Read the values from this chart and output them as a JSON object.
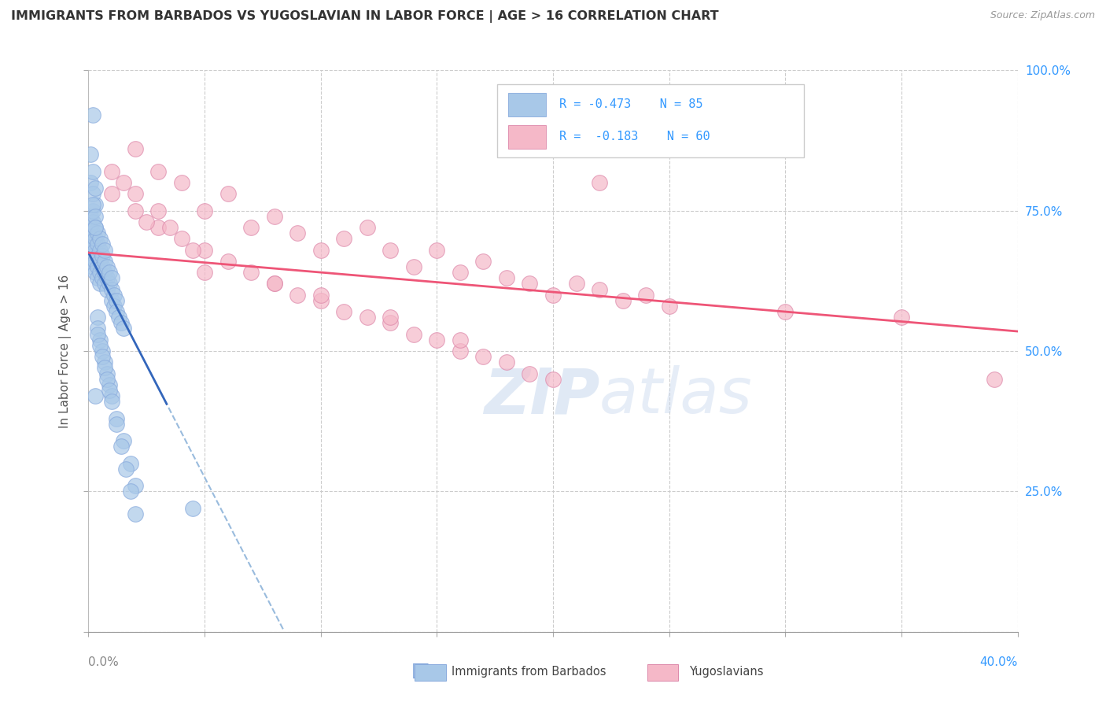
{
  "title": "IMMIGRANTS FROM BARBADOS VS YUGOSLAVIAN IN LABOR FORCE | AGE > 16 CORRELATION CHART",
  "source": "Source: ZipAtlas.com",
  "ylabel_label": "In Labor Force | Age > 16",
  "watermark": "ZIPatlas",
  "blue_color": "#a8c8e8",
  "pink_color": "#f5b8c8",
  "blue_line_color": "#3366bb",
  "pink_line_color": "#ee5577",
  "dashed_line_color": "#99bbdd",
  "right_label_color": "#3399ff",
  "x_min": 0.0,
  "x_max": 0.4,
  "y_min": 0.0,
  "y_max": 1.0,
  "blue_slope": -8.0,
  "blue_intercept": 0.675,
  "pink_slope": -0.35,
  "pink_intercept": 0.675,
  "barbados_x": [
    0.001,
    0.001,
    0.001,
    0.001,
    0.001,
    0.002,
    0.002,
    0.002,
    0.002,
    0.002,
    0.002,
    0.003,
    0.003,
    0.003,
    0.003,
    0.003,
    0.003,
    0.004,
    0.004,
    0.004,
    0.004,
    0.004,
    0.005,
    0.005,
    0.005,
    0.005,
    0.005,
    0.006,
    0.006,
    0.006,
    0.006,
    0.007,
    0.007,
    0.007,
    0.007,
    0.008,
    0.008,
    0.008,
    0.009,
    0.009,
    0.01,
    0.01,
    0.01,
    0.011,
    0.011,
    0.012,
    0.012,
    0.013,
    0.014,
    0.015,
    0.001,
    0.002,
    0.002,
    0.003,
    0.003,
    0.004,
    0.004,
    0.005,
    0.006,
    0.007,
    0.008,
    0.009,
    0.01,
    0.012,
    0.015,
    0.018,
    0.02,
    0.001,
    0.002,
    0.003,
    0.004,
    0.005,
    0.006,
    0.007,
    0.008,
    0.009,
    0.01,
    0.012,
    0.014,
    0.016,
    0.018,
    0.02,
    0.002,
    0.003,
    0.045
  ],
  "barbados_y": [
    0.7,
    0.72,
    0.74,
    0.68,
    0.66,
    0.69,
    0.71,
    0.73,
    0.67,
    0.65,
    0.75,
    0.68,
    0.7,
    0.72,
    0.66,
    0.64,
    0.76,
    0.67,
    0.69,
    0.71,
    0.65,
    0.63,
    0.66,
    0.68,
    0.7,
    0.64,
    0.62,
    0.65,
    0.67,
    0.69,
    0.63,
    0.64,
    0.66,
    0.68,
    0.62,
    0.63,
    0.65,
    0.61,
    0.62,
    0.64,
    0.61,
    0.63,
    0.59,
    0.6,
    0.58,
    0.59,
    0.57,
    0.56,
    0.55,
    0.54,
    0.8,
    0.78,
    0.76,
    0.74,
    0.72,
    0.56,
    0.54,
    0.52,
    0.5,
    0.48,
    0.46,
    0.44,
    0.42,
    0.38,
    0.34,
    0.3,
    0.26,
    0.85,
    0.82,
    0.79,
    0.53,
    0.51,
    0.49,
    0.47,
    0.45,
    0.43,
    0.41,
    0.37,
    0.33,
    0.29,
    0.25,
    0.21,
    0.92,
    0.42,
    0.22
  ],
  "yugoslavian_x": [
    0.02,
    0.03,
    0.04,
    0.05,
    0.06,
    0.07,
    0.08,
    0.09,
    0.1,
    0.11,
    0.12,
    0.13,
    0.14,
    0.15,
    0.16,
    0.17,
    0.18,
    0.19,
    0.2,
    0.21,
    0.22,
    0.23,
    0.24,
    0.25,
    0.3,
    0.35,
    0.01,
    0.02,
    0.03,
    0.04,
    0.05,
    0.06,
    0.07,
    0.08,
    0.09,
    0.1,
    0.11,
    0.12,
    0.13,
    0.14,
    0.15,
    0.16,
    0.17,
    0.18,
    0.19,
    0.2,
    0.05,
    0.08,
    0.1,
    0.13,
    0.16,
    0.01,
    0.02,
    0.03,
    0.025,
    0.015,
    0.035,
    0.045,
    0.39,
    0.22
  ],
  "yugoslavian_y": [
    0.86,
    0.82,
    0.8,
    0.75,
    0.78,
    0.72,
    0.74,
    0.71,
    0.68,
    0.7,
    0.72,
    0.68,
    0.65,
    0.68,
    0.64,
    0.66,
    0.63,
    0.62,
    0.6,
    0.62,
    0.61,
    0.59,
    0.6,
    0.58,
    0.57,
    0.56,
    0.78,
    0.75,
    0.72,
    0.7,
    0.68,
    0.66,
    0.64,
    0.62,
    0.6,
    0.59,
    0.57,
    0.56,
    0.55,
    0.53,
    0.52,
    0.5,
    0.49,
    0.48,
    0.46,
    0.45,
    0.64,
    0.62,
    0.6,
    0.56,
    0.52,
    0.82,
    0.78,
    0.75,
    0.73,
    0.8,
    0.72,
    0.68,
    0.45,
    0.8
  ]
}
